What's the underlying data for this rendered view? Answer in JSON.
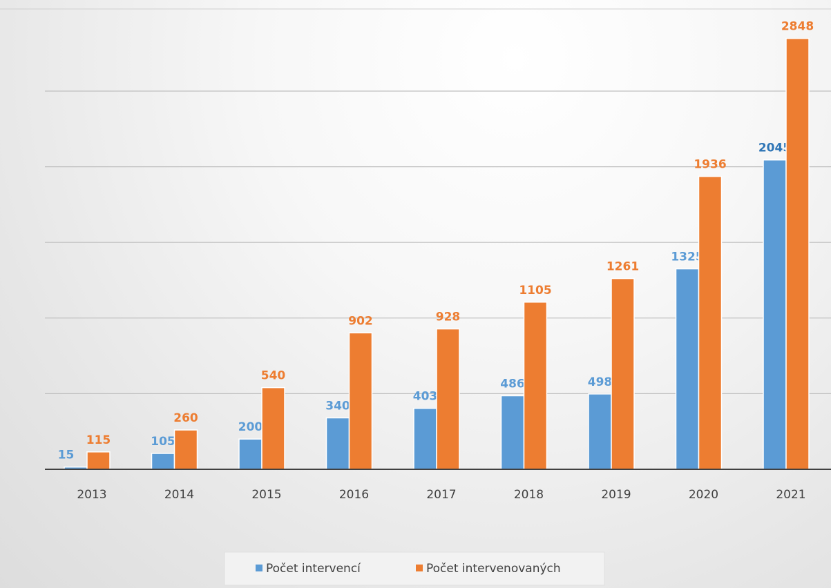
{
  "chart_data": {
    "type": "bar",
    "categories": [
      "2013",
      "2014",
      "2015",
      "2016",
      "2017",
      "2018",
      "2019",
      "2020",
      "2021"
    ],
    "series": [
      {
        "name": "Počet intervencí",
        "color": "#5b9bd5",
        "label_color": "#5b9bd5",
        "values": [
          15,
          105,
          200,
          340,
          403,
          486,
          498,
          1325,
          2045
        ]
      },
      {
        "name": "Počet intervenovaných",
        "color": "#ed7d31",
        "label_color": "#ed7d31",
        "values": [
          115,
          260,
          540,
          902,
          928,
          1105,
          1261,
          1936,
          2848
        ]
      }
    ],
    "highlight_label_color": "#2e75b6",
    "ylim": [
      0,
      3000
    ],
    "grid": true,
    "legend_position": "bottom",
    "title": "",
    "xlabel": "",
    "ylabel": ""
  }
}
